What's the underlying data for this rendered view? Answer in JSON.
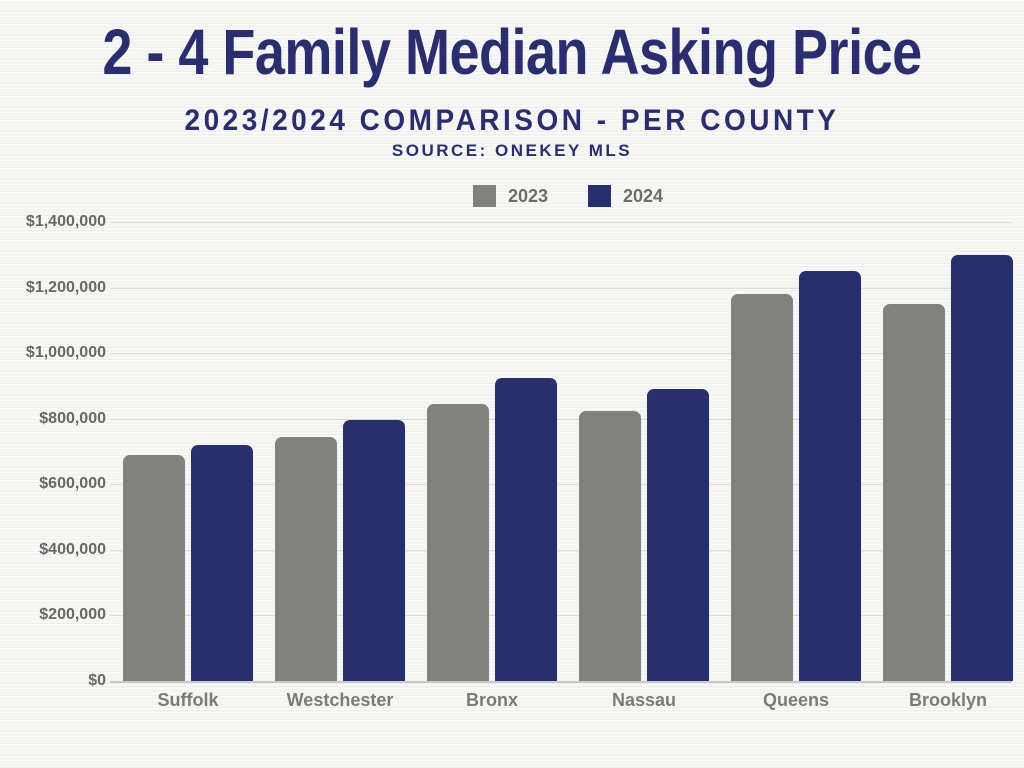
{
  "header": {
    "title": "2 - 4 Family Median Asking Price",
    "subtitle": "2023/2024 COMPARISON - PER COUNTY",
    "source": "SOURCE: ONEKEY MLS"
  },
  "legend": [
    {
      "label": "2023",
      "color": "#81817e"
    },
    {
      "label": "2024",
      "color": "#292e6d"
    }
  ],
  "colors": {
    "title_navy": "#2a2e6e",
    "bar_gray": "#81817e",
    "bar_navy": "#292e6d",
    "axis_text_gray": "#7b7b78",
    "background": "#f5f5f3"
  },
  "chart_data": {
    "type": "bar",
    "title": "2 - 4 Family Median Asking Price",
    "subtitle": "2023/2024 COMPARISON - PER COUNTY",
    "source": "SOURCE: ONEKEY MLS",
    "categories": [
      "Suffolk",
      "Westchester",
      "Bronx",
      "Nassau",
      "Queens",
      "Brooklyn"
    ],
    "series": [
      {
        "name": "2023",
        "color": "#81817e",
        "values": [
          690000,
          745000,
          845000,
          825000,
          1180000,
          1150000
        ]
      },
      {
        "name": "2024",
        "color": "#292e6d",
        "values": [
          720000,
          795000,
          925000,
          890000,
          1250000,
          1300000
        ]
      }
    ],
    "ylabel": "",
    "xlabel": "",
    "ylim": [
      0,
      1400000
    ],
    "ytick_step": 200000,
    "ytick_labels": [
      "$0",
      "$200,000",
      "$400,000",
      "$600,000",
      "$800,000",
      "$1,000,000",
      "$1,200,000",
      "$1,400,000"
    ],
    "grid": true,
    "legend_position": "top"
  }
}
